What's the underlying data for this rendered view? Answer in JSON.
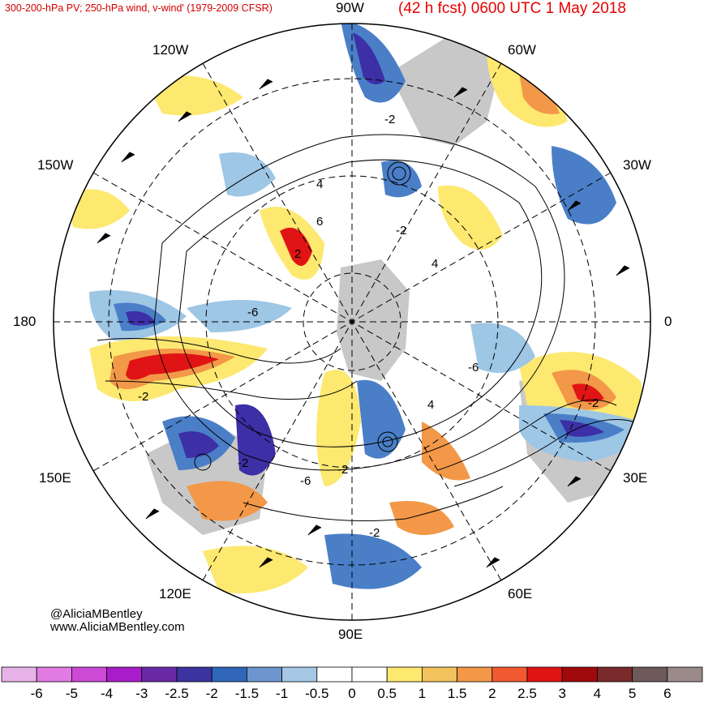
{
  "header": {
    "title_left": "300-200-hPa PV; 250-hPa wind, v-wind' (1979-2009 CFSR)",
    "title_right": "(42 h fcst) 0600 UTC 1 May 2018"
  },
  "map": {
    "projection": "north-polar-stereographic",
    "longitude_labels": {
      "top": "90W",
      "top_right": "60W",
      "right_upper": "30W",
      "right": "0",
      "right_lower": "30E",
      "bottom_right": "60E",
      "bottom": "90E",
      "bottom_left": "120E",
      "left_lower": "150E",
      "left": "180",
      "left_upper": "150W",
      "top_left": "120W"
    },
    "contour_labels": [
      "2",
      "4",
      "6",
      "-2",
      "-6"
    ],
    "colors": {
      "positive_strong": "#e00000",
      "positive": "#f58a45",
      "positive_weak": "#fde870",
      "negative_weak": "#9ec6e5",
      "negative": "#4a7fc8",
      "negative_strong": "#3d2fa6",
      "land": "#c8c8c8"
    }
  },
  "credits": {
    "handle": "@AliciaMBentley",
    "website": "www.AliciaMBentley.com"
  },
  "colorbar": {
    "levels": [
      "-6",
      "-5",
      "-4",
      "-3",
      "-2.5",
      "-2",
      "-1.5",
      "-1",
      "-0.5",
      "0",
      "0.5",
      "1",
      "1.5",
      "2",
      "2.5",
      "3",
      "4",
      "5",
      "6"
    ],
    "colors": [
      "#e8b3e8",
      "#e07ce3",
      "#cc4ad6",
      "#a81dc9",
      "#6a2aa6",
      "#3c34a0",
      "#2f66b8",
      "#6d96cf",
      "#a6c8e6",
      "#ffffff",
      "#ffffff",
      "#fde870",
      "#f2c25c",
      "#f29848",
      "#f15a30",
      "#e01414",
      "#a00a0a",
      "#7a2a2a",
      "#6e5a5a",
      "#9a8a8a"
    ]
  }
}
